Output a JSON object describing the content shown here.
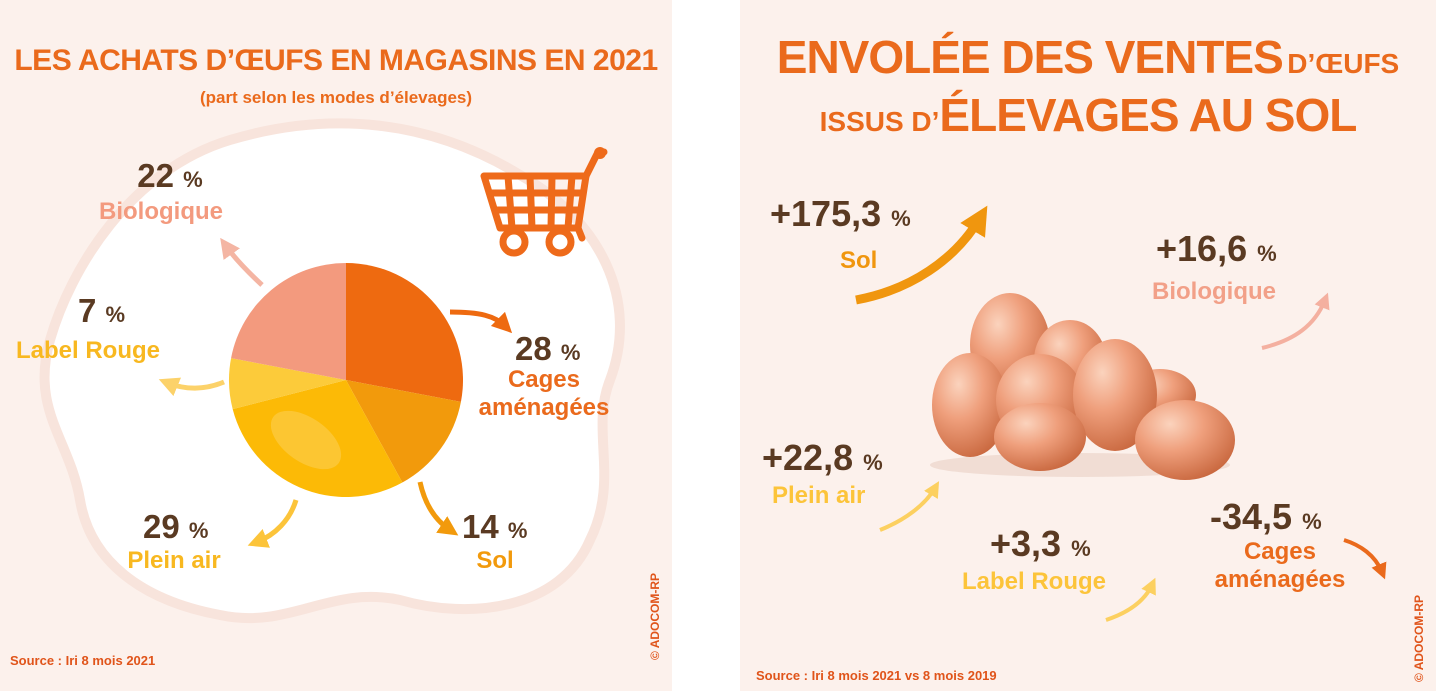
{
  "left": {
    "title": "LES ACHATS D’ŒUFS EN MAGASINS EN 2021",
    "subtitle": "(part selon les modes d’élevages)",
    "source": "Source : Iri 8 mois 2021",
    "copyright": "© ADOCOM-RP",
    "icon": "shopping-cart-icon"
  },
  "right": {
    "title_line1_big": "ENVOLÉE DES VENTES",
    "title_line1_small": "D’ŒUFS",
    "title_line2_small": "ISSUS D’",
    "title_line2_big": "ÉLEVAGES AU SOL",
    "source": "Source : Iri 8 mois 2021 vs 8 mois 2019",
    "copyright": "© ADOCOM-RP",
    "icon": "eggs-icon"
  },
  "chart_data": [
    {
      "type": "pie",
      "unit": "%",
      "slices": [
        {
          "label": "Cages aménagées",
          "value": 28,
          "color": "#ee6a10",
          "pct_text": "28",
          "pct_unit": "%"
        },
        {
          "label": "Sol",
          "value": 14,
          "color": "#f29a0c",
          "pct_text": "14",
          "pct_unit": "%"
        },
        {
          "label": "Plein air",
          "value": 29,
          "color": "#fcba06",
          "pct_text": "29",
          "pct_unit": "%"
        },
        {
          "label": "Label Rouge",
          "value": 7,
          "color": "#fccb3a",
          "pct_text": "7",
          "pct_unit": "%"
        },
        {
          "label": "Biologique",
          "value": 22,
          "color": "#f39a7e",
          "pct_text": "22",
          "pct_unit": "%"
        }
      ]
    },
    {
      "type": "table",
      "rows": [
        {
          "label": "Sol",
          "change": 175.3,
          "text": "+175,3",
          "unit": "%",
          "color": "#f09a14",
          "trend": "up"
        },
        {
          "label": "Biologique",
          "change": 16.6,
          "text": "+16,6",
          "unit": "%",
          "color": "#f2a088",
          "trend": "up"
        },
        {
          "label": "Plein air",
          "change": 22.8,
          "text": "+22,8",
          "unit": "%",
          "color": "#fcc43a",
          "trend": "up"
        },
        {
          "label": "Label Rouge",
          "change": 3.3,
          "text": "+3,3",
          "unit": "%",
          "color": "#fcc43a",
          "trend": "up"
        },
        {
          "label": "Cages aménagées",
          "change": -34.5,
          "text": "-34,5",
          "unit": "%",
          "color": "#ea6a1c",
          "trend": "down"
        }
      ]
    }
  ]
}
